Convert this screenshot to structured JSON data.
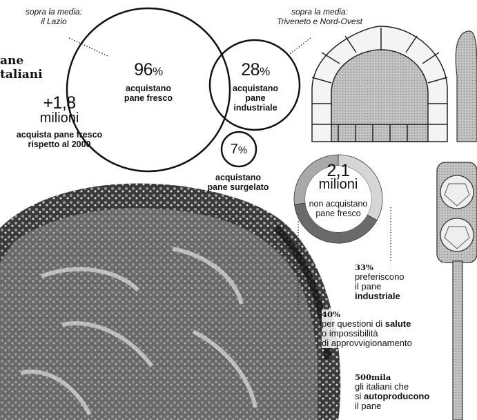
{
  "title": {
    "line1": "ane",
    "line2": "taliani"
  },
  "callouts": {
    "lazio": {
      "line1": "sopra la media:",
      "line2": "il Lazio"
    },
    "north": {
      "line1": "sopra la media:",
      "line2": "Triveneto e Nord-Ovest"
    }
  },
  "circles": {
    "fresh": {
      "value": "96",
      "unit": "%",
      "line1": "acquistano",
      "line2": "pane fresco"
    },
    "industrial": {
      "value": "28",
      "unit": "%",
      "line1": "acquistano",
      "line2": "pane",
      "line3": "industriale"
    },
    "frozen": {
      "value": "7",
      "unit": "%",
      "line1": "acquistano",
      "line2": "pane surgelato"
    }
  },
  "growth": {
    "value": "+1,8",
    "unit": "milioni",
    "line1": "acquista pane fresco",
    "line2": "rispetto al 2000"
  },
  "non_buyers": {
    "value": "2,1",
    "unit": "milioni",
    "line1": "non acquistano",
    "line2": "pane fresco"
  },
  "breakdown": [
    {
      "value": "33%",
      "text_before": "preferiscono\nil pane\n",
      "bold": "industriale",
      "text_after": "",
      "share": 0.33
    },
    {
      "value": "40%",
      "text_before": "per questioni di ",
      "bold": "salute",
      "text_after": "\no impossibilità\n di approvvigionamento",
      "share": 0.4
    },
    {
      "value": "500mila",
      "text_before": "gli italiani che\nsi ",
      "bold": "autoproducono",
      "text_after": "\nil pane",
      "share": null
    }
  ],
  "colors": {
    "ink": "#111111",
    "ring_dark": "#6a6a6a",
    "ring_mid": "#a9a9a9",
    "ring_light": "#d6d6d6",
    "bread_dark": "#2b2b2b",
    "bread_light": "#cfcfcf"
  }
}
